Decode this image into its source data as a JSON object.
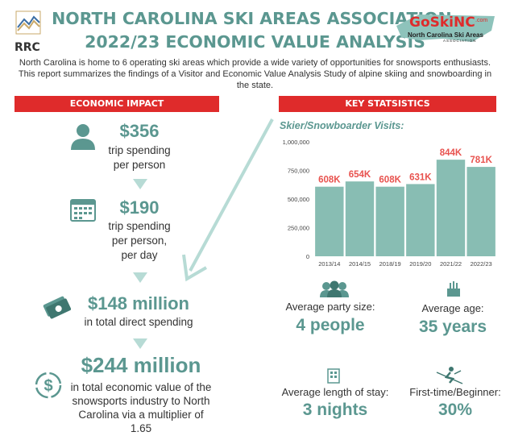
{
  "header": {
    "logo_left_text": "RRC",
    "title_line1": "NORTH CAROLINA SKI AREAS ASSOCIATION:",
    "title_line2": "2022/23 ECONOMIC VALUE ANALYSIS",
    "logo_right_name": "GoSkiNC",
    "logo_right_com": ".com",
    "logo_right_sub": "North Carolina Ski Areas",
    "logo_right_assoc": "ASSOCIATION"
  },
  "intro": "North Carolina is home to 6 operating ski areas which provide a wide variety of opportunities for snowsports enthusiasts. This report summarizes the findings of a Visitor and Economic Value Analysis Study of alpine skiing and snowboarding in the state.",
  "left": {
    "banner": "ECONOMIC IMPACT",
    "items": [
      {
        "value": "$356",
        "desc1": "trip spending",
        "desc2": "per person",
        "icon": "person-icon"
      },
      {
        "value": "$190",
        "desc1": "trip spending",
        "desc2": "per person,",
        "desc3": "per day",
        "icon": "calendar-icon"
      },
      {
        "value": "$148 million",
        "desc1": "in total direct spending",
        "icon": "money-icon"
      },
      {
        "value": "$244 million",
        "desc1": "in total economic value of the",
        "desc2": "snowsports industry to North",
        "desc3": "Carolina via a multiplier of",
        "desc4": "1.65",
        "icon": "dollar-cycle-icon"
      }
    ]
  },
  "right": {
    "banner": "KEY STATSISTICS",
    "chart_title": "Skier/Snowboarder Visits:",
    "stats": [
      {
        "label": "Average party size:",
        "value": "4 people",
        "icon": "group-icon"
      },
      {
        "label": "Average age:",
        "value": "35 years",
        "icon": "age-icon"
      },
      {
        "label": "Average length of stay:",
        "value": "3 nights",
        "icon": "hotel-icon"
      },
      {
        "label": "First-time/Beginner:",
        "value": "30%",
        "icon": "skier-icon"
      }
    ]
  },
  "colors": {
    "teal": "#5b9790",
    "bar": "#88bdb3",
    "red": "#df2b2b",
    "label_red": "#e8534f"
  },
  "chart_data": {
    "type": "bar",
    "title": "Skier/Snowboarder Visits:",
    "categories": [
      "2013/14",
      "2014/15",
      "2018/19",
      "2019/20",
      "2021/22",
      "2022/23"
    ],
    "values": [
      608000,
      654000,
      608000,
      631000,
      844000,
      781000
    ],
    "data_labels": [
      "608K",
      "654K",
      "608K",
      "631K",
      "844K",
      "781K"
    ],
    "ylim": [
      0,
      1000000
    ],
    "yticks": [
      "0",
      "250,000",
      "500,000",
      "750,000",
      "1,000,000"
    ],
    "ytick_values": [
      0,
      250000,
      500000,
      750000,
      1000000
    ],
    "grid": false
  }
}
